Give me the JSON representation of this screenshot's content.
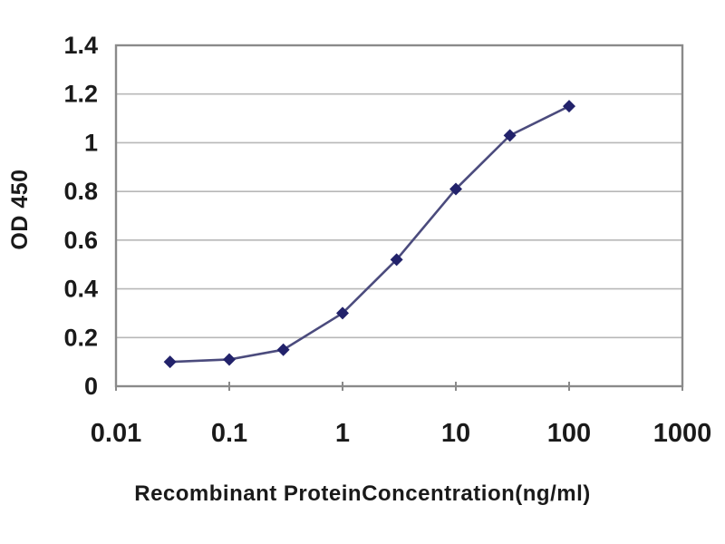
{
  "figure": {
    "background": "#ffffff"
  },
  "chart_data": {
    "type": "line",
    "title": "",
    "xlabel": "Recombinant ProteinConcentration(ng/ml)",
    "ylabel": "OD 450",
    "x_scale": "log",
    "xlim": [
      0.01,
      1000
    ],
    "ylim": [
      0,
      1.4
    ],
    "x_ticks": [
      "0.01",
      "0.1",
      "1",
      "10",
      "100",
      "1000"
    ],
    "x_tick_values": [
      0.01,
      0.1,
      1,
      10,
      100,
      1000
    ],
    "y_ticks": [
      "0",
      "0.2",
      "0.4",
      "0.6",
      "0.8",
      "1",
      "1.2",
      "1.4"
    ],
    "y_tick_values": [
      0,
      0.2,
      0.4,
      0.6,
      0.8,
      1.0,
      1.2,
      1.4
    ],
    "grid": "horizontal",
    "legend": "none",
    "series": [
      {
        "name": "OD 450",
        "marker": "diamond",
        "marker_color": "#22226b",
        "line_color": "#4b4b7d",
        "x": [
          0.03,
          0.1,
          0.3,
          1,
          3,
          10,
          30,
          100
        ],
        "y": [
          0.1,
          0.11,
          0.15,
          0.3,
          0.52,
          0.81,
          1.03,
          1.15
        ]
      }
    ],
    "colors": {
      "axis": "#8a8a8a",
      "grid": "#b8b8b8",
      "text": "#1a1a1a"
    }
  }
}
